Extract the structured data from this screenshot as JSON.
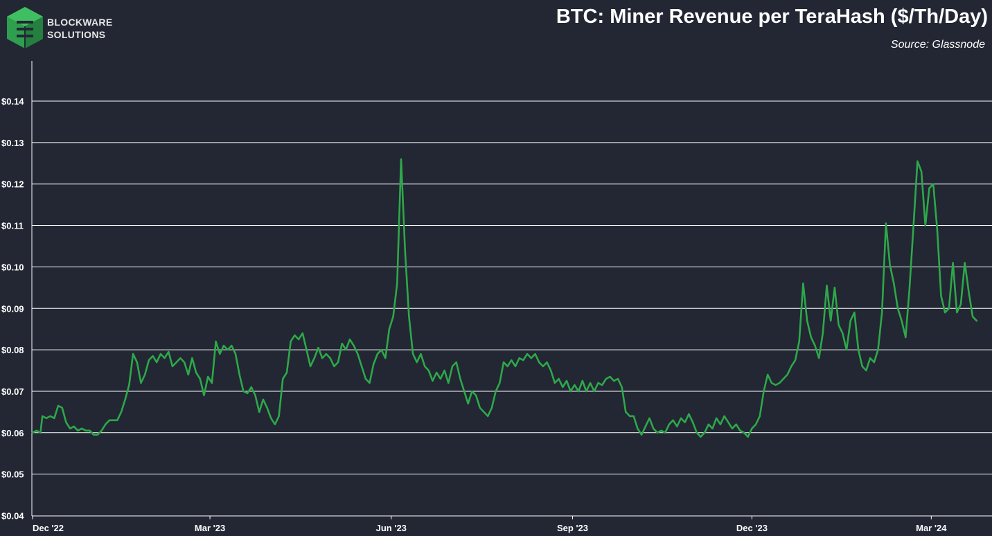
{
  "brand": {
    "line1": "BLOCKWARE",
    "line2": "SOLUTIONS",
    "logo_color": "#2e9e4f"
  },
  "header": {
    "title": "BTC: Miner Revenue per TeraHash ($/Th/Day)",
    "source": "Source: Glassnode"
  },
  "colors": {
    "background": "#222733",
    "line": "#2ea84a",
    "grid": "#ffffff"
  },
  "chart_data": {
    "type": "line",
    "title": "BTC: Miner Revenue per TeraHash ($/Th/Day)",
    "xlabel": "",
    "ylabel": "",
    "ylim": [
      0.04,
      0.15
    ],
    "yticks": [
      0.04,
      0.05,
      0.06,
      0.07,
      0.08,
      0.09,
      0.1,
      0.11,
      0.12,
      0.13,
      0.14
    ],
    "ytick_labels": [
      "$0.04",
      "$0.05",
      "$0.06",
      "$0.07",
      "$0.08",
      "$0.09",
      "$0.10",
      "$0.11",
      "$0.12",
      "$0.13",
      "$0.14"
    ],
    "x_range_days": [
      0,
      482
    ],
    "xticks": [
      {
        "label": "Dec '22",
        "day": 0
      },
      {
        "label": "Mar '23",
        "day": 90
      },
      {
        "label": "Jun '23",
        "day": 182
      },
      {
        "label": "Sep '23",
        "day": 274
      },
      {
        "label": "Dec '23",
        "day": 365
      },
      {
        "label": "Mar '24",
        "day": 456
      }
    ],
    "grid": true,
    "series": [
      {
        "name": "Miner Revenue per TeraHash",
        "x_unit": "days since Dec 1, 2022",
        "points": [
          [
            0,
            0.06
          ],
          [
            2,
            0.0605
          ],
          [
            4,
            0.06
          ],
          [
            5,
            0.064
          ],
          [
            7,
            0.0635
          ],
          [
            9,
            0.064
          ],
          [
            11,
            0.0635
          ],
          [
            13,
            0.0665
          ],
          [
            15,
            0.066
          ],
          [
            17,
            0.0625
          ],
          [
            19,
            0.061
          ],
          [
            21,
            0.0615
          ],
          [
            23,
            0.0605
          ],
          [
            25,
            0.061
          ],
          [
            27,
            0.0605
          ],
          [
            29,
            0.0605
          ],
          [
            31,
            0.0595
          ],
          [
            33,
            0.0595
          ],
          [
            35,
            0.0605
          ],
          [
            37,
            0.062
          ],
          [
            39,
            0.063
          ],
          [
            41,
            0.063
          ],
          [
            43,
            0.063
          ],
          [
            45,
            0.065
          ],
          [
            47,
            0.068
          ],
          [
            49,
            0.0715
          ],
          [
            51,
            0.079
          ],
          [
            53,
            0.077
          ],
          [
            55,
            0.072
          ],
          [
            57,
            0.074
          ],
          [
            59,
            0.0775
          ],
          [
            61,
            0.0785
          ],
          [
            63,
            0.077
          ],
          [
            65,
            0.079
          ],
          [
            67,
            0.078
          ],
          [
            69,
            0.0795
          ],
          [
            71,
            0.076
          ],
          [
            73,
            0.077
          ],
          [
            75,
            0.078
          ],
          [
            77,
            0.077
          ],
          [
            79,
            0.074
          ],
          [
            81,
            0.078
          ],
          [
            83,
            0.0745
          ],
          [
            85,
            0.073
          ],
          [
            87,
            0.069
          ],
          [
            89,
            0.0735
          ],
          [
            91,
            0.072
          ],
          [
            93,
            0.082
          ],
          [
            95,
            0.079
          ],
          [
            97,
            0.081
          ],
          [
            99,
            0.08
          ],
          [
            101,
            0.081
          ],
          [
            103,
            0.079
          ],
          [
            105,
            0.074
          ],
          [
            107,
            0.07
          ],
          [
            109,
            0.0695
          ],
          [
            111,
            0.071
          ],
          [
            113,
            0.069
          ],
          [
            115,
            0.065
          ],
          [
            117,
            0.068
          ],
          [
            119,
            0.066
          ],
          [
            121,
            0.0635
          ],
          [
            123,
            0.062
          ],
          [
            125,
            0.064
          ],
          [
            127,
            0.073
          ],
          [
            129,
            0.0745
          ],
          [
            131,
            0.082
          ],
          [
            133,
            0.0835
          ],
          [
            135,
            0.0825
          ],
          [
            137,
            0.084
          ],
          [
            139,
            0.08
          ],
          [
            141,
            0.076
          ],
          [
            143,
            0.078
          ],
          [
            145,
            0.0805
          ],
          [
            147,
            0.078
          ],
          [
            149,
            0.079
          ],
          [
            151,
            0.078
          ],
          [
            153,
            0.076
          ],
          [
            155,
            0.077
          ],
          [
            157,
            0.0815
          ],
          [
            159,
            0.08
          ],
          [
            161,
            0.0825
          ],
          [
            163,
            0.081
          ],
          [
            165,
            0.079
          ],
          [
            167,
            0.076
          ],
          [
            169,
            0.073
          ],
          [
            171,
            0.072
          ],
          [
            173,
            0.0765
          ],
          [
            175,
            0.079
          ],
          [
            177,
            0.08
          ],
          [
            179,
            0.078
          ],
          [
            181,
            0.085
          ],
          [
            183,
            0.088
          ],
          [
            185,
            0.096
          ],
          [
            187,
            0.126
          ],
          [
            189,
            0.104
          ],
          [
            191,
            0.088
          ],
          [
            193,
            0.079
          ],
          [
            195,
            0.077
          ],
          [
            197,
            0.079
          ],
          [
            199,
            0.076
          ],
          [
            201,
            0.075
          ],
          [
            203,
            0.0725
          ],
          [
            205,
            0.0745
          ],
          [
            207,
            0.073
          ],
          [
            209,
            0.075
          ],
          [
            211,
            0.072
          ],
          [
            213,
            0.076
          ],
          [
            215,
            0.077
          ],
          [
            217,
            0.073
          ],
          [
            219,
            0.07
          ],
          [
            221,
            0.067
          ],
          [
            223,
            0.07
          ],
          [
            225,
            0.069
          ],
          [
            227,
            0.066
          ],
          [
            229,
            0.065
          ],
          [
            231,
            0.064
          ],
          [
            233,
            0.066
          ],
          [
            235,
            0.07
          ],
          [
            237,
            0.072
          ],
          [
            239,
            0.077
          ],
          [
            241,
            0.076
          ],
          [
            243,
            0.0775
          ],
          [
            245,
            0.076
          ],
          [
            247,
            0.078
          ],
          [
            249,
            0.0775
          ],
          [
            251,
            0.079
          ],
          [
            253,
            0.078
          ],
          [
            255,
            0.079
          ],
          [
            257,
            0.077
          ],
          [
            259,
            0.076
          ],
          [
            261,
            0.077
          ],
          [
            263,
            0.075
          ],
          [
            265,
            0.072
          ],
          [
            267,
            0.073
          ],
          [
            269,
            0.071
          ],
          [
            271,
            0.0725
          ],
          [
            273,
            0.07
          ],
          [
            275,
            0.0715
          ],
          [
            277,
            0.07
          ],
          [
            279,
            0.0725
          ],
          [
            281,
            0.07
          ],
          [
            283,
            0.072
          ],
          [
            285,
            0.07
          ],
          [
            287,
            0.072
          ],
          [
            289,
            0.0715
          ],
          [
            291,
            0.073
          ],
          [
            293,
            0.0735
          ],
          [
            295,
            0.0725
          ],
          [
            297,
            0.073
          ],
          [
            299,
            0.071
          ],
          [
            301,
            0.065
          ],
          [
            303,
            0.064
          ],
          [
            305,
            0.064
          ],
          [
            307,
            0.061
          ],
          [
            309,
            0.0595
          ],
          [
            311,
            0.0615
          ],
          [
            313,
            0.0635
          ],
          [
            315,
            0.061
          ],
          [
            317,
            0.06
          ],
          [
            319,
            0.0605
          ],
          [
            321,
            0.06
          ],
          [
            323,
            0.062
          ],
          [
            325,
            0.063
          ],
          [
            327,
            0.0615
          ],
          [
            329,
            0.0635
          ],
          [
            331,
            0.0625
          ],
          [
            333,
            0.0645
          ],
          [
            335,
            0.0625
          ],
          [
            337,
            0.06
          ],
          [
            339,
            0.059
          ],
          [
            341,
            0.06
          ],
          [
            343,
            0.062
          ],
          [
            345,
            0.061
          ],
          [
            347,
            0.0635
          ],
          [
            349,
            0.062
          ],
          [
            351,
            0.064
          ],
          [
            353,
            0.0625
          ],
          [
            355,
            0.061
          ],
          [
            357,
            0.062
          ],
          [
            359,
            0.0605
          ],
          [
            361,
            0.06
          ],
          [
            363,
            0.059
          ],
          [
            365,
            0.061
          ],
          [
            367,
            0.062
          ],
          [
            369,
            0.064
          ],
          [
            371,
            0.07
          ],
          [
            373,
            0.074
          ],
          [
            375,
            0.072
          ],
          [
            377,
            0.0715
          ],
          [
            379,
            0.072
          ],
          [
            381,
            0.073
          ],
          [
            383,
            0.074
          ],
          [
            385,
            0.076
          ],
          [
            387,
            0.0775
          ],
          [
            389,
            0.082
          ],
          [
            391,
            0.096
          ],
          [
            393,
            0.087
          ],
          [
            395,
            0.083
          ],
          [
            397,
            0.081
          ],
          [
            399,
            0.078
          ],
          [
            401,
            0.084
          ],
          [
            403,
            0.0955
          ],
          [
            405,
            0.087
          ],
          [
            407,
            0.095
          ],
          [
            409,
            0.086
          ],
          [
            411,
            0.084
          ],
          [
            413,
            0.08
          ],
          [
            415,
            0.087
          ],
          [
            417,
            0.089
          ],
          [
            419,
            0.08
          ],
          [
            421,
            0.076
          ],
          [
            423,
            0.075
          ],
          [
            425,
            0.078
          ],
          [
            427,
            0.077
          ],
          [
            429,
            0.08
          ],
          [
            431,
            0.089
          ],
          [
            433,
            0.1105
          ],
          [
            435,
            0.1005
          ],
          [
            437,
            0.096
          ],
          [
            439,
            0.09
          ],
          [
            441,
            0.087
          ],
          [
            443,
            0.083
          ],
          [
            445,
            0.095
          ],
          [
            447,
            0.11
          ],
          [
            449,
            0.1255
          ],
          [
            451,
            0.123
          ],
          [
            453,
            0.11
          ],
          [
            455,
            0.119
          ],
          [
            457,
            0.12
          ],
          [
            459,
            0.109
          ],
          [
            461,
            0.093
          ],
          [
            463,
            0.089
          ],
          [
            465,
            0.09
          ],
          [
            467,
            0.101
          ],
          [
            469,
            0.089
          ],
          [
            471,
            0.091
          ],
          [
            473,
            0.101
          ],
          [
            475,
            0.094
          ],
          [
            477,
            0.088
          ],
          [
            479,
            0.087
          ]
        ]
      }
    ]
  }
}
